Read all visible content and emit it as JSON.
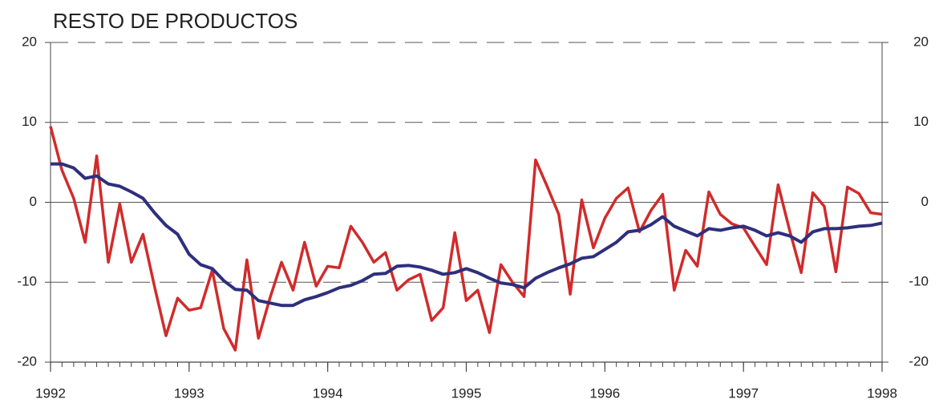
{
  "chart_data": {
    "type": "line",
    "title": "RESTO DE PRODUCTOS",
    "x": [
      1992,
      1992.083,
      1992.167,
      1992.25,
      1992.333,
      1992.417,
      1992.5,
      1992.583,
      1992.667,
      1992.75,
      1992.833,
      1992.917,
      1993,
      1993.083,
      1993.167,
      1993.25,
      1993.333,
      1993.417,
      1993.5,
      1993.583,
      1993.667,
      1993.75,
      1993.833,
      1993.917,
      1994,
      1994.083,
      1994.167,
      1994.25,
      1994.333,
      1994.417,
      1994.5,
      1994.583,
      1994.667,
      1994.75,
      1994.833,
      1994.917,
      1995,
      1995.083,
      1995.167,
      1995.25,
      1995.333,
      1995.417,
      1995.5,
      1995.583,
      1995.667,
      1995.75,
      1995.833,
      1995.917,
      1996,
      1996.083,
      1996.167,
      1996.25,
      1996.333,
      1996.417,
      1996.5,
      1996.583,
      1996.667,
      1996.75,
      1996.833,
      1996.917,
      1997,
      1997.083,
      1997.167,
      1997.25,
      1997.333,
      1997.417,
      1997.5,
      1997.583,
      1997.667,
      1997.75,
      1997.833,
      1997.917,
      1998
    ],
    "series": [
      {
        "color": "#d12b2b",
        "values": [
          9.5,
          4,
          0.5,
          -5,
          5.8,
          -7.5,
          -0.2,
          -7.5,
          -4,
          -10.5,
          -16.7,
          -12,
          -13.5,
          -13.2,
          -8.5,
          -15.8,
          -18.5,
          -7.2,
          -17,
          -12,
          -7.5,
          -11,
          -5,
          -10.5,
          -8,
          -8.2,
          -3,
          -5,
          -7.5,
          -6.3,
          -11,
          -9.7,
          -9,
          -14.8,
          -13.2,
          -3.8,
          -12.3,
          -11,
          -16.3,
          -7.8,
          -10,
          -11.8,
          5.3,
          2,
          -1.5,
          -11.5,
          0.3,
          -5.7,
          -2,
          0.5,
          1.8,
          -3.7,
          -1,
          1,
          -11,
          -6,
          -8,
          1.3,
          -1.5,
          -2.7,
          -3.2,
          -5.5,
          -7.8,
          2.2,
          -3.5,
          -8.8,
          1.2,
          -0.5,
          -8.7,
          1.9,
          1.1,
          -1.3,
          -1.5
        ]
      },
      {
        "color": "#2e2f7c",
        "values": [
          4.8,
          4.8,
          4.3,
          3,
          3.3,
          2.3,
          2,
          1.3,
          0.5,
          -1.3,
          -2.9,
          -4,
          -6.5,
          -7.8,
          -8.3,
          -9.8,
          -10.9,
          -11,
          -12.3,
          -12.6,
          -12.9,
          -12.9,
          -12.2,
          -11.8,
          -11.3,
          -10.7,
          -10.4,
          -9.8,
          -9,
          -8.9,
          -8,
          -7.9,
          -8.1,
          -8.5,
          -9,
          -8.8,
          -8.3,
          -8.8,
          -9.5,
          -10.1,
          -10.3,
          -10.7,
          -9.5,
          -8.8,
          -8.2,
          -7.7,
          -7,
          -6.8,
          -5.9,
          -5,
          -3.7,
          -3.5,
          -2.8,
          -1.8,
          -3,
          -3.6,
          -4.2,
          -3.3,
          -3.5,
          -3.2,
          -3,
          -3.5,
          -4.2,
          -3.8,
          -4.2,
          -5,
          -3.7,
          -3.3,
          -3.3,
          -3.2,
          -3,
          -2.9,
          -2.6
        ]
      }
    ],
    "xlim": [
      1992,
      1998
    ],
    "xticks": [
      1992,
      1993,
      1994,
      1995,
      1996,
      1997,
      1998
    ],
    "ylim": [
      -20,
      20
    ],
    "yticks": [
      -20,
      -10,
      0,
      10,
      20
    ],
    "y2lim": [
      -20,
      20
    ],
    "y2ticks": [
      -20,
      -10,
      0,
      10,
      20
    ],
    "grid": true
  }
}
